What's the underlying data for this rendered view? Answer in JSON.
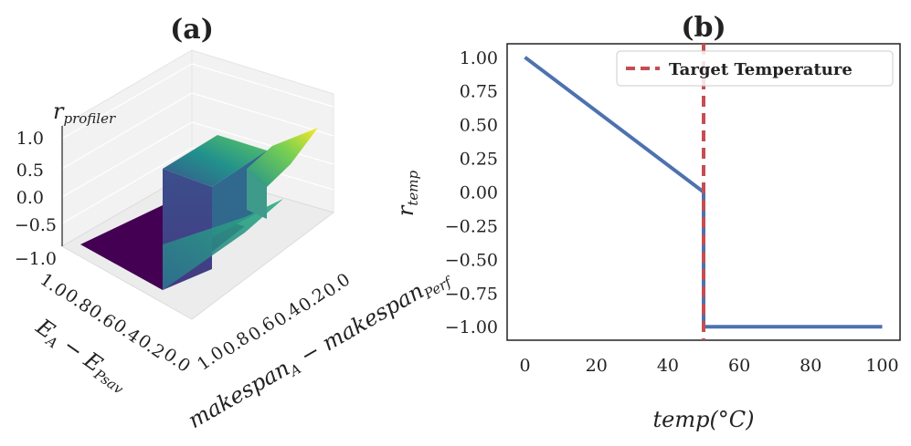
{
  "chart_data": [
    {
      "type": "surface3d",
      "panel_label": "(a)",
      "zlabel": "r_profiler",
      "xlabel": "makespan_A − makespan_Perf",
      "ylabel": "E_A − E_Psav",
      "x_ticks": [
        "0.0",
        "0.2",
        "0.4",
        "0.6",
        "0.8",
        "1.0"
      ],
      "y_ticks": [
        "0.0",
        "0.2",
        "0.4",
        "0.6",
        "0.8",
        "1.0"
      ],
      "z_ticks": [
        "1.0",
        "0.5",
        "0.0",
        "−0.5",
        "−1.0"
      ],
      "zlim": [
        -1.0,
        1.0
      ],
      "colormap": "viridis",
      "grid": true,
      "surface_levels": [
        {
          "region": "low plateau",
          "z": -1.0
        },
        {
          "region": "step",
          "z": -0.5
        },
        {
          "region": "upper plateau",
          "z": 0.5
        },
        {
          "region": "ramp",
          "z": 1.0
        }
      ]
    },
    {
      "type": "line",
      "panel_label": "(b)",
      "xlabel": "temp(°C)",
      "ylabel": "r_temp",
      "xlim": [
        -5,
        105
      ],
      "ylim": [
        -1.1,
        1.1
      ],
      "x_ticks": [
        0,
        20,
        40,
        60,
        80,
        100
      ],
      "y_ticks": [
        1.0,
        0.75,
        0.5,
        0.25,
        0.0,
        -0.25,
        -0.5,
        -0.75,
        -1.0
      ],
      "grid": false,
      "legend_position": "top-right",
      "series": [
        {
          "name": "",
          "color": "#4c72b0",
          "style": "solid",
          "points": [
            [
              0,
              1.0
            ],
            [
              50,
              0.0
            ],
            [
              50,
              -1.0
            ],
            [
              100,
              -1.0
            ]
          ]
        },
        {
          "name": "Target Temperature",
          "color": "#c44e52",
          "style": "dashed",
          "vline_x": 50
        }
      ]
    }
  ]
}
